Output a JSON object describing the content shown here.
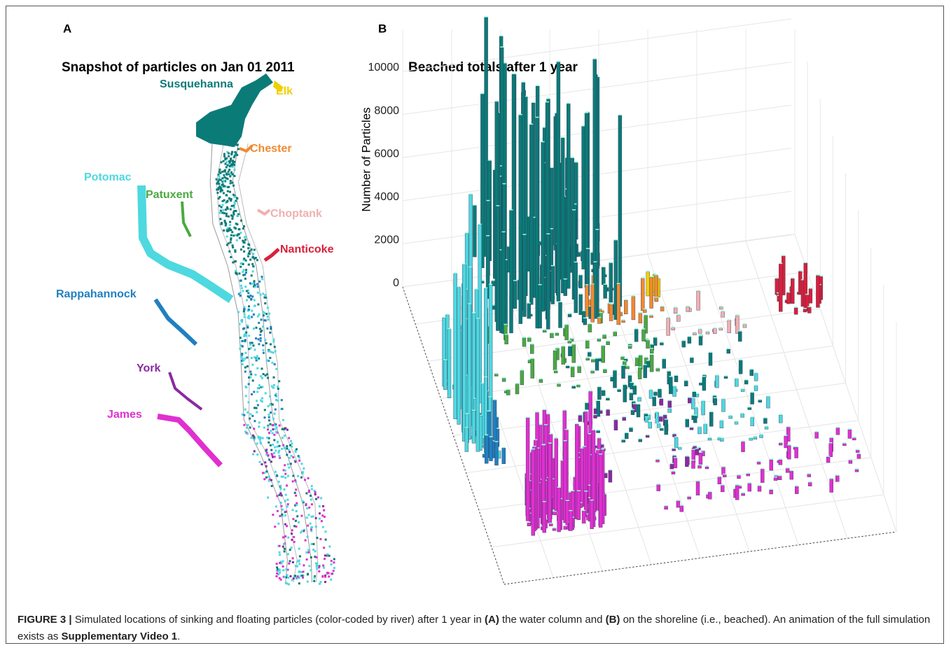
{
  "panel_a": {
    "label": "A",
    "title": "Snapshot of particles on Jan 01 2011",
    "rivers": [
      {
        "name": "Susquehanna",
        "color": "#0b7b78"
      },
      {
        "name": "Elk",
        "color": "#f0d000"
      },
      {
        "name": "Chester",
        "color": "#f08a30"
      },
      {
        "name": "Potomac",
        "color": "#4ed8e0"
      },
      {
        "name": "Patuxent",
        "color": "#4aaa40"
      },
      {
        "name": "Choptank",
        "color": "#f0b0b0"
      },
      {
        "name": "Nanticoke",
        "color": "#d8203c"
      },
      {
        "name": "Rappahannock",
        "color": "#2080c0"
      },
      {
        "name": "York",
        "color": "#8a2aa0"
      },
      {
        "name": "James",
        "color": "#e030d0"
      }
    ]
  },
  "panel_b": {
    "label": "B",
    "title": "Beached totals after 1 year",
    "z_label": "Number of Particles",
    "zlim": [
      0,
      10000
    ],
    "zticks": [
      0,
      2000,
      4000,
      6000,
      8000,
      10000
    ]
  },
  "caption": {
    "segments": [
      "FIGURE 3 |",
      " Simulated locations of sinking and floating particles (color-coded by river) after 1 year in ",
      "(A)",
      " the water column and ",
      "(B)",
      " on the shoreline (i.e., beached). An animation of the full simulation exists as ",
      "Supplementary Video 1",
      "."
    ]
  }
}
